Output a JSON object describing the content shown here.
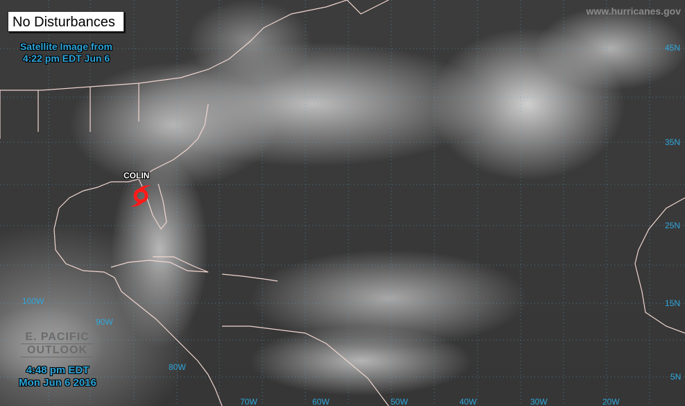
{
  "status_box": "No Disturbances",
  "satellite_time": {
    "line1": "Satellite Image from",
    "line2": "4:22 pm EDT Jun 6"
  },
  "watermark": "www.hurricanes.gov",
  "epac_outlook": {
    "line1": "E. PACIFIC",
    "line2": "OUTLOOK"
  },
  "issued_time": {
    "line1": "4:48 pm EDT",
    "line2": "Mon Jun 6 2016"
  },
  "storms": [
    {
      "name": "COLIN",
      "icon": "tropical-storm-icon",
      "color": "#ff1a1a"
    }
  ],
  "lat_labels": [
    "45N",
    "35N",
    "25N",
    "15N",
    "5N"
  ],
  "lon_labels": [
    "100W",
    "90W",
    "80W",
    "70W",
    "60W",
    "50W",
    "40W",
    "30W",
    "20W"
  ],
  "colors": {
    "label": "#2ea7dc",
    "coastline": "#f2d6d0",
    "storm": "#ff1a1a"
  }
}
